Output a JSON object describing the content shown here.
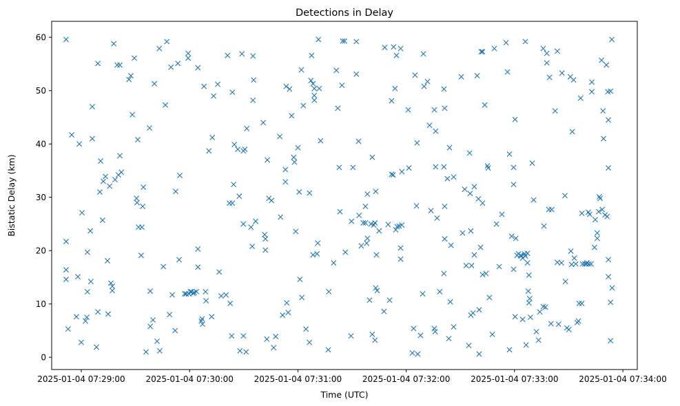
{
  "chart_data": {
    "type": "scatter",
    "title": "Detections in Delay",
    "xlabel": "Time (UTC)",
    "ylabel": "Bistatic Delay (km)",
    "x_units": "seconds after 2025-01-04 07:29:00",
    "x_origin": "2025-01-04 07:29:00",
    "xlim": [
      -16.4,
      308
    ],
    "ylim": [
      -2.3,
      63.0
    ],
    "x_ticks": [
      {
        "value": 0,
        "label": "2025-01-04 07:29:00"
      },
      {
        "value": 60,
        "label": "2025-01-04 07:30:00"
      },
      {
        "value": 120,
        "label": "2025-01-04 07:31:00"
      },
      {
        "value": 180,
        "label": "2025-01-04 07:32:00"
      },
      {
        "value": 240,
        "label": "2025-01-04 07:33:00"
      },
      {
        "value": 300,
        "label": "2025-01-04 07:34:00"
      }
    ],
    "y_ticks": [
      {
        "value": 0,
        "label": "0"
      },
      {
        "value": 10,
        "label": "10"
      },
      {
        "value": 20,
        "label": "20"
      },
      {
        "value": 30,
        "label": "30"
      },
      {
        "value": 40,
        "label": "40"
      },
      {
        "value": 50,
        "label": "50"
      },
      {
        "value": 60,
        "label": "60"
      }
    ],
    "grid": false,
    "marker": "x",
    "color": "#1f77b4",
    "points": [
      [
        -8.4,
        59.6
      ],
      [
        -8.4,
        21.7
      ],
      [
        -8.4,
        16.4
      ],
      [
        -8.4,
        14.6
      ],
      [
        -7.3,
        5.3
      ],
      [
        -5.3,
        41.7
      ],
      [
        -2.7,
        7.6
      ],
      [
        -1.9,
        15.1
      ],
      [
        -1.1,
        40.0
      ],
      [
        0,
        2.8
      ],
      [
        0.4,
        27.1
      ],
      [
        2.3,
        6.8
      ],
      [
        3.1,
        7.5
      ],
      [
        3.4,
        12.3
      ],
      [
        3.4,
        19.7
      ],
      [
        5.0,
        23.7
      ],
      [
        5.3,
        14.2
      ],
      [
        6.1,
        47.0
      ],
      [
        6.1,
        41.0
      ],
      [
        8.4,
        1.9
      ],
      [
        9.2,
        55.1
      ],
      [
        9.2,
        8.5
      ],
      [
        10.3,
        31.0
      ],
      [
        10.7,
        36.8
      ],
      [
        11.8,
        25.7
      ],
      [
        12.2,
        33.0
      ],
      [
        13.4,
        33.9
      ],
      [
        14.5,
        18.1
      ],
      [
        14.9,
        8.1
      ],
      [
        15.7,
        32.1
      ],
      [
        16.4,
        13.9
      ],
      [
        17.2,
        13.3
      ],
      [
        17.2,
        12.5
      ],
      [
        18.0,
        58.8
      ],
      [
        18.7,
        33.3
      ],
      [
        19.9,
        54.8
      ],
      [
        20.6,
        34.2
      ],
      [
        21.4,
        54.8
      ],
      [
        21.4,
        37.8
      ],
      [
        22.2,
        34.7
      ],
      [
        26.4,
        52.1
      ],
      [
        27.5,
        52.8
      ],
      [
        28.3,
        45.5
      ],
      [
        29.4,
        56.1
      ],
      [
        30.6,
        29.8
      ],
      [
        30.9,
        29.0
      ],
      [
        31.3,
        40.8
      ],
      [
        31.7,
        24.4
      ],
      [
        33.6,
        24.4
      ],
      [
        33.2,
        19.1
      ],
      [
        34.0,
        28.3
      ],
      [
        34.4,
        31.9
      ],
      [
        35.9,
        1.0
      ],
      [
        37.8,
        43.0
      ],
      [
        38.2,
        5.8
      ],
      [
        38.2,
        12.4
      ],
      [
        39.7,
        7.0
      ],
      [
        40.5,
        51.3
      ],
      [
        42.0,
        3.0
      ],
      [
        43.2,
        57.9
      ],
      [
        43.5,
        1.2
      ],
      [
        45.5,
        17.0
      ],
      [
        46.6,
        47.3
      ],
      [
        47.4,
        59.2
      ],
      [
        48.9,
        8.0
      ],
      [
        49.7,
        54.4
      ],
      [
        50.4,
        11.7
      ],
      [
        52.0,
        5.0
      ],
      [
        52.3,
        31.1
      ],
      [
        53.5,
        55.1
      ],
      [
        54.2,
        18.3
      ],
      [
        54.6,
        34.1
      ],
      [
        57.3,
        11.9
      ],
      [
        58.1,
        11.9
      ],
      [
        59.2,
        57.0
      ],
      [
        59.2,
        56.1
      ],
      [
        59.6,
        11.9
      ],
      [
        60.4,
        12.3
      ],
      [
        61.1,
        12.3
      ],
      [
        61.9,
        12.0
      ],
      [
        62.6,
        12.1
      ],
      [
        63.8,
        12.3
      ],
      [
        64.6,
        54.3
      ],
      [
        64.6,
        20.3
      ],
      [
        64.6,
        16.9
      ],
      [
        66.5,
        6.8
      ],
      [
        66.9,
        7.2
      ],
      [
        67.2,
        6.2
      ],
      [
        68.0,
        50.8
      ],
      [
        68.8,
        12.3
      ],
      [
        69.1,
        10.6
      ],
      [
        70.7,
        38.7
      ],
      [
        72.2,
        7.6
      ],
      [
        72.6,
        41.2
      ],
      [
        73.3,
        49.0
      ],
      [
        75.6,
        51.2
      ],
      [
        76.4,
        16.0
      ],
      [
        77.5,
        11.5
      ],
      [
        80.2,
        11.7
      ],
      [
        81.0,
        56.6
      ],
      [
        82.1,
        28.9
      ],
      [
        83.7,
        28.9
      ],
      [
        83.3,
        4.0
      ],
      [
        83.7,
        49.7
      ],
      [
        84.4,
        32.4
      ],
      [
        84.8,
        39.9
      ],
      [
        82.5,
        10.1
      ],
      [
        86.7,
        39.0
      ],
      [
        87.5,
        30.2
      ],
      [
        87.9,
        1.2
      ],
      [
        89.0,
        56.9
      ],
      [
        89.8,
        4.0
      ],
      [
        89.8,
        25.0
      ],
      [
        89.8,
        38.7
      ],
      [
        90.6,
        39.0
      ],
      [
        91.3,
        1.0
      ],
      [
        91.7,
        42.9
      ],
      [
        94.0,
        24.4
      ],
      [
        94.7,
        20.8
      ],
      [
        95.1,
        48.2
      ],
      [
        95.1,
        56.5
      ],
      [
        95.5,
        52.0
      ],
      [
        96.6,
        25.5
      ],
      [
        100.8,
        44.0
      ],
      [
        101.6,
        23.0
      ],
      [
        102.0,
        22.2
      ],
      [
        102.0,
        20.1
      ],
      [
        102.8,
        3.4
      ],
      [
        103.1,
        37.0
      ],
      [
        103.9,
        29.8
      ],
      [
        105.4,
        29.4
      ],
      [
        106.6,
        1.8
      ],
      [
        107.7,
        3.9
      ],
      [
        110.0,
        41.4
      ],
      [
        110.4,
        26.3
      ],
      [
        111.5,
        7.9
      ],
      [
        113.1,
        32.9
      ],
      [
        113.1,
        35.2
      ],
      [
        113.5,
        50.8
      ],
      [
        113.8,
        10.2
      ],
      [
        114.6,
        8.4
      ],
      [
        115.4,
        50.3
      ],
      [
        116.5,
        45.3
      ],
      [
        117.7,
        37.5
      ],
      [
        118.1,
        36.6
      ],
      [
        118.8,
        23.6
      ],
      [
        120.0,
        39.3
      ],
      [
        120.7,
        31.0
      ],
      [
        121.1,
        14.6
      ],
      [
        121.9,
        53.9
      ],
      [
        122.2,
        11.2
      ],
      [
        123.0,
        47.2
      ],
      [
        124.5,
        5.3
      ],
      [
        126.4,
        2.8
      ],
      [
        126.4,
        30.8
      ],
      [
        127.2,
        51.9
      ],
      [
        127.6,
        56.6
      ],
      [
        128.4,
        19.2
      ],
      [
        128.4,
        51.3
      ],
      [
        129.1,
        50.4
      ],
      [
        129.1,
        48.2
      ],
      [
        129.1,
        49.1
      ],
      [
        130.6,
        19.4
      ],
      [
        131.0,
        21.4
      ],
      [
        131.4,
        59.6
      ],
      [
        131.8,
        50.4
      ],
      [
        132.6,
        40.6
      ],
      [
        137.1,
        12.3
      ],
      [
        136.8,
        1.4
      ],
      [
        139.8,
        17.7
      ],
      [
        141.3,
        53.8
      ],
      [
        142.1,
        46.7
      ],
      [
        142.9,
        35.6
      ],
      [
        143.3,
        27.3
      ],
      [
        144.4,
        51.0
      ],
      [
        144.8,
        59.3
      ],
      [
        145.9,
        59.3
      ],
      [
        146.3,
        19.7
      ],
      [
        149.4,
        4.0
      ],
      [
        149.7,
        25.5
      ],
      [
        150.5,
        35.6
      ],
      [
        152.4,
        53.1
      ],
      [
        152.4,
        59.2
      ],
      [
        153.6,
        40.5
      ],
      [
        153.9,
        26.6
      ],
      [
        155.1,
        20.9
      ],
      [
        156.2,
        25.2
      ],
      [
        157.4,
        25.2
      ],
      [
        157.4,
        28.3
      ],
      [
        158.1,
        21.4
      ],
      [
        158.5,
        22.3
      ],
      [
        158.5,
        30.6
      ],
      [
        159.7,
        10.7
      ],
      [
        160.5,
        25.0
      ],
      [
        161.2,
        4.3
      ],
      [
        161.2,
        37.5
      ],
      [
        162.0,
        24.8
      ],
      [
        162.7,
        3.2
      ],
      [
        162.7,
        25.2
      ],
      [
        163.1,
        13.0
      ],
      [
        163.1,
        31.1
      ],
      [
        163.5,
        19.2
      ],
      [
        163.9,
        12.5
      ],
      [
        165.0,
        23.7
      ],
      [
        167.7,
        8.6
      ],
      [
        168.1,
        58.1
      ],
      [
        170.0,
        24.9
      ],
      [
        170.8,
        10.7
      ],
      [
        171.9,
        34.3
      ],
      [
        171.9,
        48.1
      ],
      [
        172.7,
        34.2
      ],
      [
        173.0,
        58.2
      ],
      [
        173.8,
        50.4
      ],
      [
        174.2,
        23.9
      ],
      [
        174.6,
        56.6
      ],
      [
        175.0,
        24.5
      ],
      [
        176.9,
        57.9
      ],
      [
        176.1,
        24.6
      ],
      [
        176.9,
        20.5
      ],
      [
        176.9,
        18.4
      ],
      [
        177.6,
        34.8
      ],
      [
        177.6,
        24.8
      ],
      [
        181.1,
        46.4
      ],
      [
        181.5,
        35.5
      ],
      [
        183.4,
        0.8
      ],
      [
        184.1,
        5.4
      ],
      [
        184.9,
        52.9
      ],
      [
        185.7,
        28.4
      ],
      [
        186.0,
        40.2
      ],
      [
        186.4,
        0.6
      ],
      [
        187.9,
        4.1
      ],
      [
        189.1,
        11.9
      ],
      [
        189.5,
        56.9
      ],
      [
        189.9,
        50.8
      ],
      [
        191.8,
        51.7
      ],
      [
        192.9,
        43.5
      ],
      [
        193.7,
        27.5
      ],
      [
        195.6,
        46.4
      ],
      [
        195.6,
        5.4
      ],
      [
        196.0,
        4.8
      ],
      [
        196.3,
        42.4
      ],
      [
        196.3,
        35.7
      ],
      [
        197.1,
        26.1
      ],
      [
        198.6,
        12.3
      ],
      [
        200.9,
        35.7
      ],
      [
        200.9,
        15.7
      ],
      [
        200.9,
        50.3
      ],
      [
        201.3,
        22.2
      ],
      [
        201.3,
        28.3
      ],
      [
        201.3,
        46.7
      ],
      [
        202.8,
        33.5
      ],
      [
        203.6,
        3.5
      ],
      [
        204.0,
        39.3
      ],
      [
        204.4,
        10.4
      ],
      [
        204.8,
        21.0
      ],
      [
        206.3,
        5.7
      ],
      [
        206.3,
        33.8
      ],
      [
        210.5,
        52.6
      ],
      [
        211.2,
        23.3
      ],
      [
        212.4,
        31.5
      ],
      [
        213.2,
        17.2
      ],
      [
        216.2,
        17.2
      ],
      [
        214.7,
        2.2
      ],
      [
        215.1,
        38.3
      ],
      [
        215.4,
        30.7
      ],
      [
        215.8,
        23.7
      ],
      [
        215.8,
        7.9
      ],
      [
        217.7,
        32.0
      ],
      [
        217.0,
        8.3
      ],
      [
        217.7,
        19.2
      ],
      [
        219.3,
        52.8
      ],
      [
        220.0,
        29.7
      ],
      [
        220.4,
        8.9
      ],
      [
        220.4,
        0.6
      ],
      [
        221.2,
        20.6
      ],
      [
        221.6,
        57.3
      ],
      [
        222.3,
        57.3
      ],
      [
        222.3,
        28.9
      ],
      [
        222.3,
        15.5
      ],
      [
        223.5,
        47.3
      ],
      [
        224.2,
        15.7
      ],
      [
        225.0,
        35.9
      ],
      [
        225.4,
        35.5
      ],
      [
        226.1,
        11.2
      ],
      [
        227.7,
        4.3
      ],
      [
        228.8,
        57.9
      ],
      [
        230.0,
        25.0
      ],
      [
        231.5,
        17.0
      ],
      [
        233.0,
        26.8
      ],
      [
        235.3,
        59.0
      ],
      [
        236.1,
        53.5
      ],
      [
        237.2,
        1.4
      ],
      [
        237.2,
        38.1
      ],
      [
        238.4,
        22.7
      ],
      [
        239.5,
        16.5
      ],
      [
        239.5,
        35.6
      ],
      [
        239.5,
        32.4
      ],
      [
        240.3,
        44.6
      ],
      [
        240.7,
        22.3
      ],
      [
        240.3,
        7.6
      ],
      [
        241.4,
        19.1
      ],
      [
        242.2,
        19.4
      ],
      [
        243.3,
        19.1
      ],
      [
        243.7,
        19.0
      ],
      [
        244.5,
        18.6
      ],
      [
        244.5,
        7.1
      ],
      [
        245.6,
        19.4
      ],
      [
        246.0,
        19.0
      ],
      [
        246.0,
        59.2
      ],
      [
        247.2,
        17.7
      ],
      [
        247.2,
        19.5
      ],
      [
        246.4,
        2.3
      ],
      [
        247.6,
        12.4
      ],
      [
        248.0,
        15.4
      ],
      [
        248.0,
        10.2
      ],
      [
        248.4,
        11.0
      ],
      [
        248.8,
        7.5
      ],
      [
        249.8,
        36.4
      ],
      [
        250.6,
        29.5
      ],
      [
        252.1,
        4.8
      ],
      [
        253.3,
        3.2
      ],
      [
        254.0,
        8.5
      ],
      [
        255.9,
        9.5
      ],
      [
        255.9,
        57.9
      ],
      [
        256.3,
        24.6
      ],
      [
        257.1,
        9.4
      ],
      [
        257.9,
        57.0
      ],
      [
        257.9,
        55.2
      ],
      [
        259.0,
        27.7
      ],
      [
        259.4,
        52.5
      ],
      [
        260.6,
        27.7
      ],
      [
        260.2,
        6.3
      ],
      [
        262.5,
        46.2
      ],
      [
        263.7,
        57.4
      ],
      [
        263.7,
        17.8
      ],
      [
        264.4,
        6.2
      ],
      [
        266.0,
        17.7
      ],
      [
        266.3,
        53.3
      ],
      [
        267.9,
        30.3
      ],
      [
        268.2,
        14.2
      ],
      [
        269.0,
        5.5
      ],
      [
        270.1,
        5.2
      ],
      [
        270.9,
        52.6
      ],
      [
        271.2,
        19.9
      ],
      [
        271.6,
        17.4
      ],
      [
        272.0,
        42.3
      ],
      [
        272.7,
        52.0
      ],
      [
        273.1,
        18.6
      ],
      [
        273.9,
        17.5
      ],
      [
        274.7,
        6.5
      ],
      [
        275.4,
        6.8
      ],
      [
        275.8,
        10.1
      ],
      [
        277.3,
        10.1
      ],
      [
        276.6,
        48.6
      ],
      [
        277.3,
        27.0
      ],
      [
        277.7,
        17.5
      ],
      [
        278.9,
        17.5
      ],
      [
        279.7,
        17.5
      ],
      [
        280.1,
        17.7
      ],
      [
        280.9,
        27.2
      ],
      [
        281.2,
        17.5
      ],
      [
        281.6,
        26.8
      ],
      [
        282.4,
        17.5
      ],
      [
        282.8,
        51.6
      ],
      [
        282.8,
        49.8
      ],
      [
        284.3,
        20.6
      ],
      [
        284.7,
        25.8
      ],
      [
        285.8,
        22.3
      ],
      [
        285.8,
        23.3
      ],
      [
        286.6,
        27.3
      ],
      [
        287.0,
        30.1
      ],
      [
        287.4,
        29.8
      ],
      [
        288.2,
        55.7
      ],
      [
        288.6,
        27.7
      ],
      [
        289.0,
        46.2
      ],
      [
        289.3,
        41.0
      ],
      [
        290.1,
        26.7
      ],
      [
        290.9,
        54.8
      ],
      [
        291.3,
        26.4
      ],
      [
        291.7,
        49.8
      ],
      [
        292.0,
        44.5
      ],
      [
        292.0,
        35.5
      ],
      [
        292.0,
        18.3
      ],
      [
        292.0,
        15.1
      ],
      [
        293.2,
        10.3
      ],
      [
        293.2,
        49.9
      ],
      [
        293.2,
        3.1
      ],
      [
        293.9,
        59.6
      ],
      [
        294.1,
        13.0
      ]
    ]
  }
}
